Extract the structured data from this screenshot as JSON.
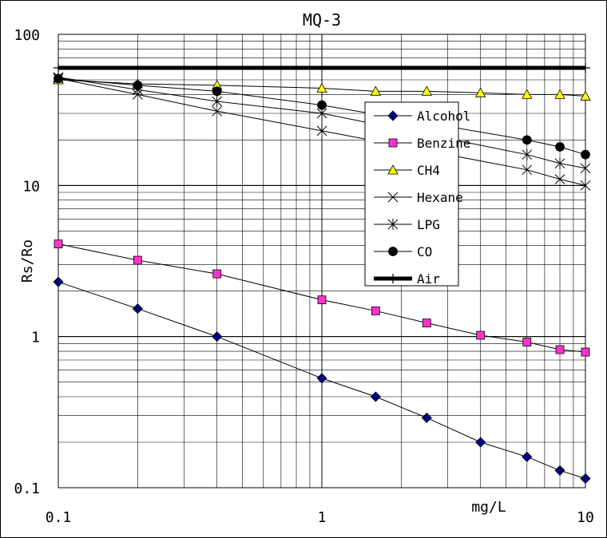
{
  "chart_data": {
    "type": "line",
    "title": "MQ-3",
    "xlabel": "mg/L",
    "ylabel": "Rs/Ro",
    "x_scale": "log",
    "y_scale": "log",
    "xlim": [
      0.1,
      10
    ],
    "ylim": [
      0.1,
      100
    ],
    "x_tick_labels": [
      "0.1",
      "1",
      "10"
    ],
    "y_tick_labels": [
      "0.1",
      "1",
      "10",
      "100"
    ],
    "grid": true,
    "legend_position": "right",
    "series": [
      {
        "name": "Alcohol",
        "marker": "diamond",
        "color": "#000080",
        "x": [
          0.1,
          0.2,
          0.4,
          1,
          1.6,
          2.5,
          4,
          6,
          8,
          10
        ],
        "y": [
          2.3,
          1.53,
          1.0,
          0.53,
          0.4,
          0.29,
          0.2,
          0.16,
          0.13,
          0.115
        ]
      },
      {
        "name": "Benzine",
        "marker": "square",
        "color": "#ff33cc",
        "x": [
          0.1,
          0.2,
          0.4,
          1,
          1.6,
          2.5,
          4,
          6,
          8,
          10
        ],
        "y": [
          4.1,
          3.2,
          2.6,
          1.75,
          1.48,
          1.23,
          1.02,
          0.92,
          0.82,
          0.79
        ]
      },
      {
        "name": "CH4",
        "marker": "triangle",
        "color": "#ffff00",
        "x": [
          0.1,
          0.2,
          0.4,
          1,
          1.6,
          2.5,
          4,
          6,
          8,
          10
        ],
        "y": [
          50,
          47,
          46,
          44,
          42,
          42,
          41,
          40,
          40,
          39
        ]
      },
      {
        "name": "Hexane",
        "marker": "x",
        "color": "#000000",
        "x": [
          0.1,
          0.2,
          0.4,
          1,
          6,
          8,
          10
        ],
        "y": [
          51,
          40,
          31,
          23,
          12.7,
          11,
          10
        ]
      },
      {
        "name": "LPG",
        "marker": "asterisk",
        "color": "#000000",
        "x": [
          0.1,
          0.2,
          0.4,
          1,
          6,
          8,
          10
        ],
        "y": [
          52,
          43,
          36,
          30,
          16,
          14,
          13
        ]
      },
      {
        "name": "CO",
        "marker": "circle",
        "color": "#000000",
        "x": [
          0.1,
          0.2,
          0.4,
          1,
          6,
          8,
          10
        ],
        "y": [
          51,
          46,
          42,
          34,
          20,
          18,
          16
        ]
      },
      {
        "name": "Air",
        "marker": "plus",
        "color": "#000000",
        "line": "thick",
        "x": [
          0.1,
          10
        ],
        "y": [
          60,
          60
        ]
      }
    ]
  }
}
